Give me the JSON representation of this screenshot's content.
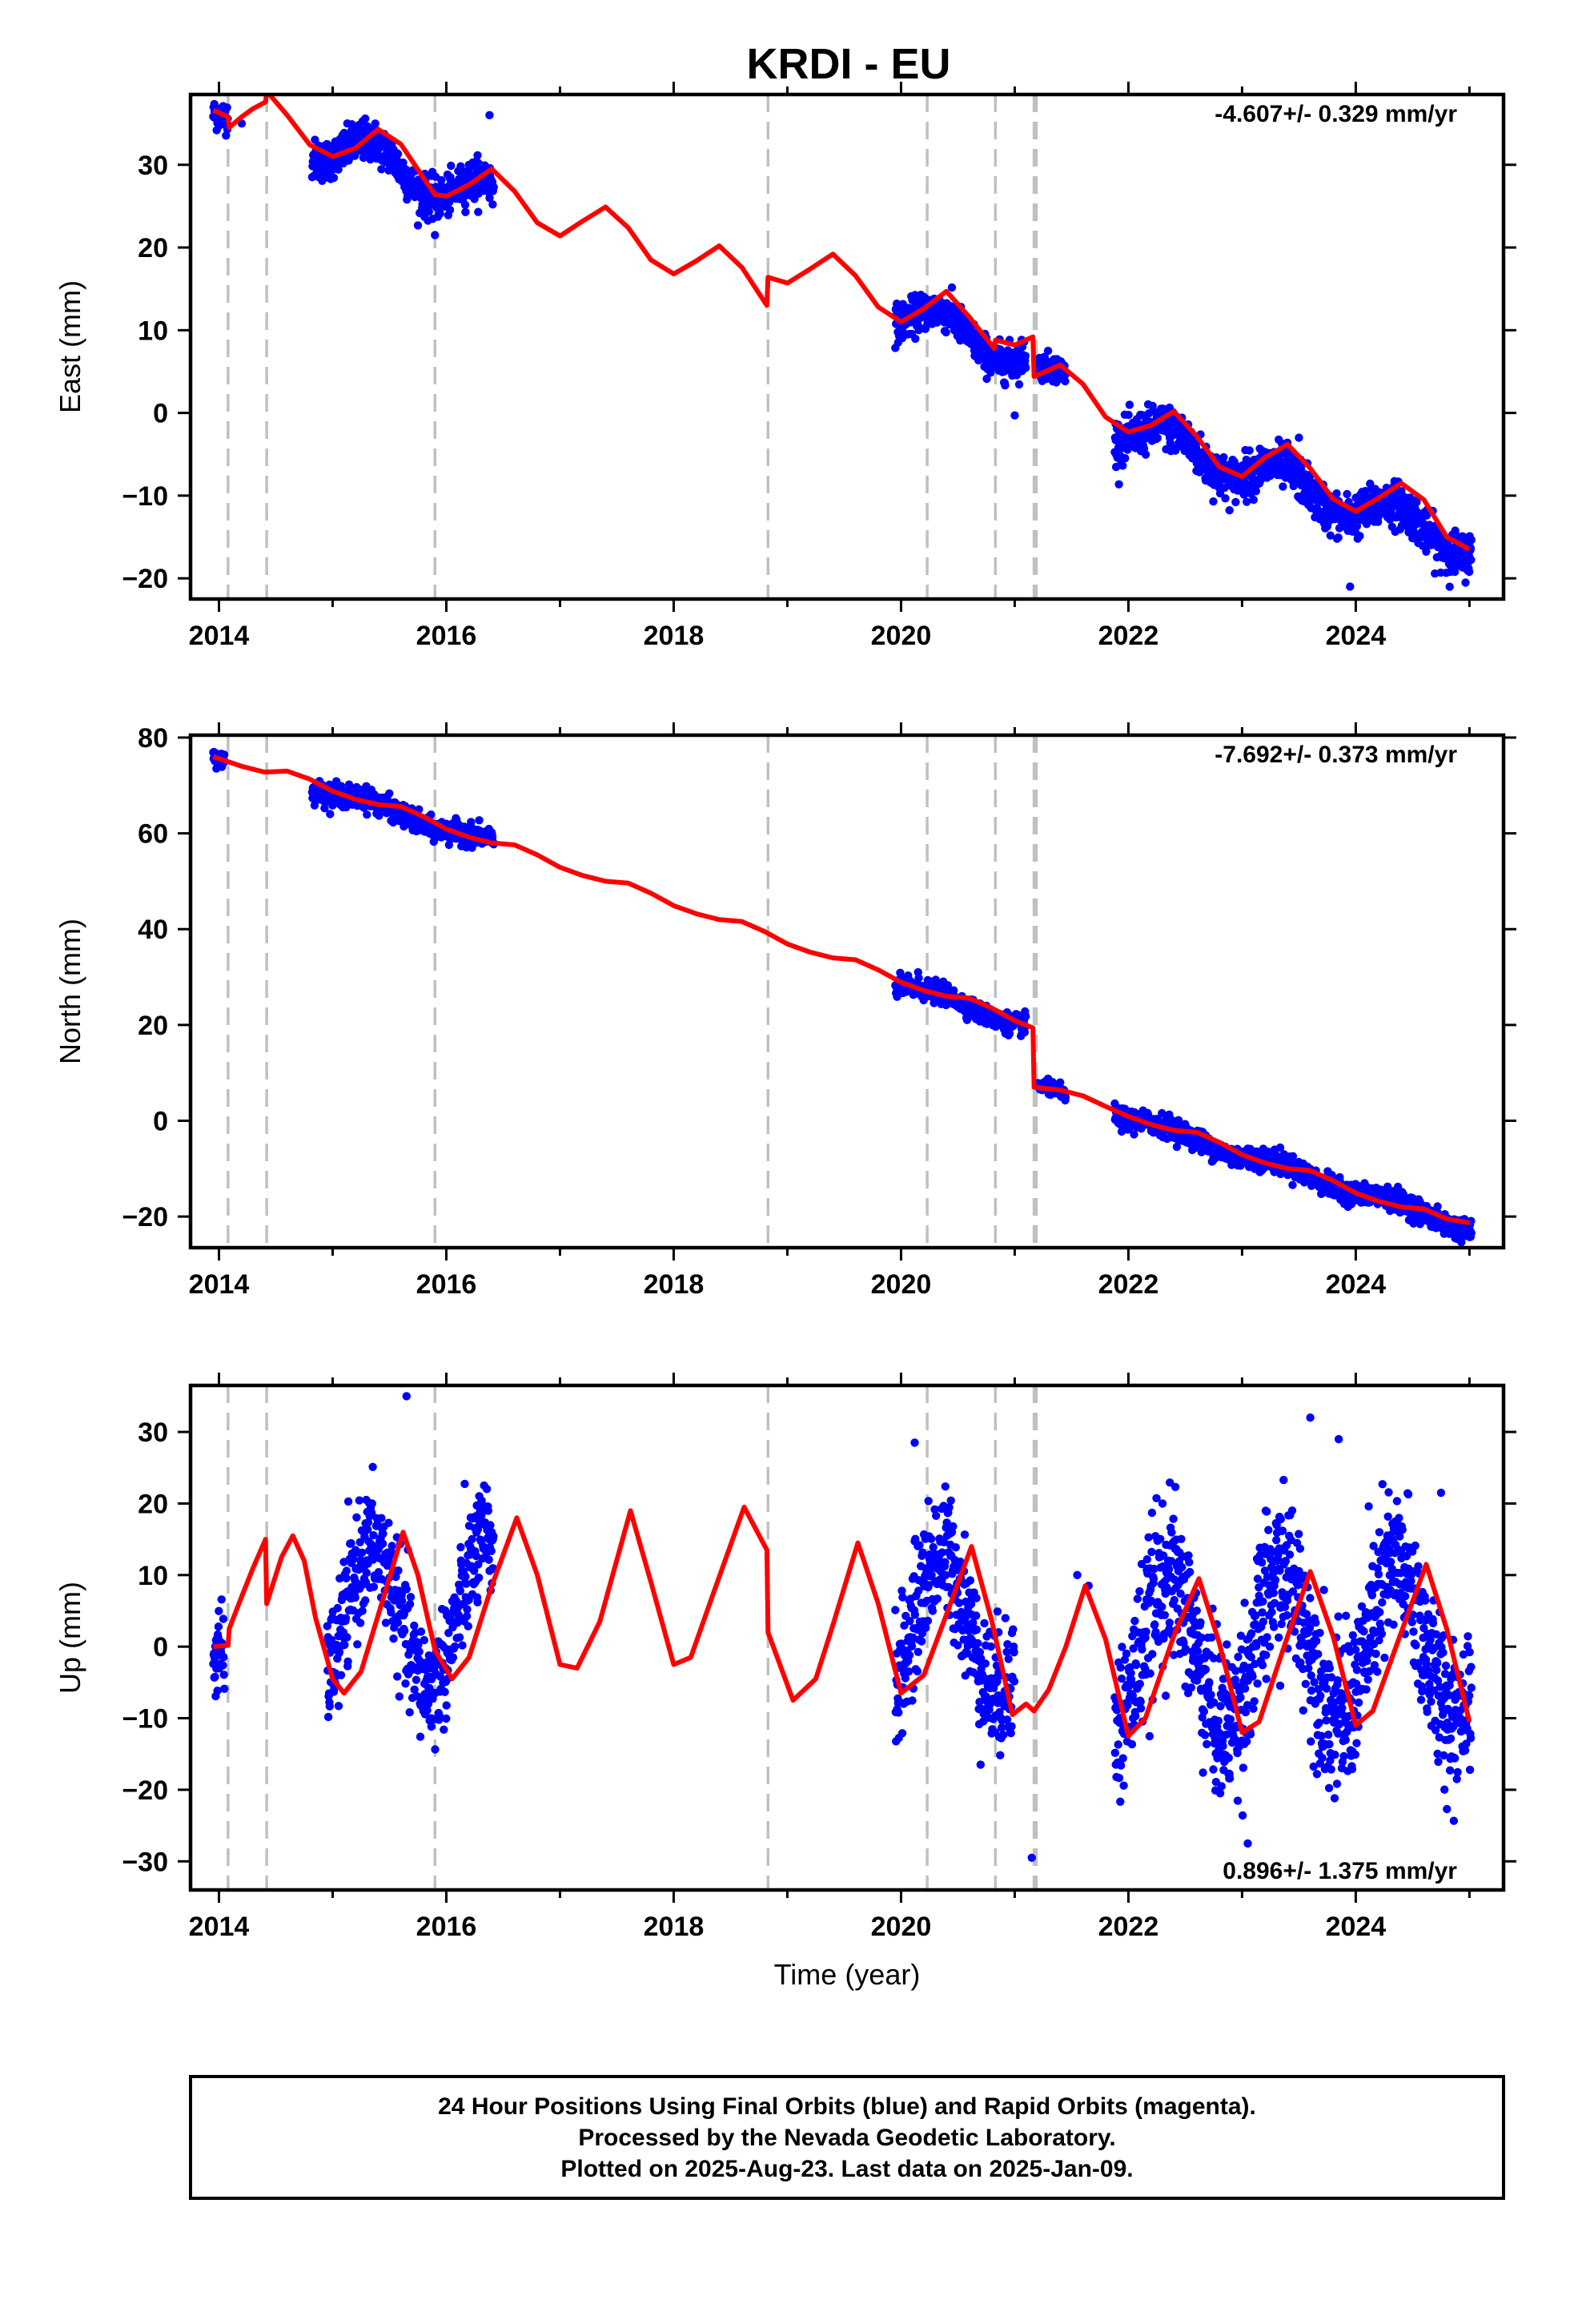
{
  "title": "KRDI - EU",
  "footer": {
    "lines": [
      "24 Hour Positions Using Final Orbits (blue) and Rapid Orbits (magenta).",
      "Processed by the Nevada Geodetic Laboratory.",
      "Plotted on 2025-Aug-23. Last data on 2025-Jan-09."
    ]
  },
  "colors": {
    "data": "#0000ff",
    "model": "#ff0000",
    "events": "#c0c0c0",
    "axis": "#000000"
  },
  "chart_data": [
    {
      "type": "scatter",
      "name": "east",
      "ylabel": "East (mm)",
      "xlabel": "",
      "rate": "-4.607+/- 0.329 mm/yr",
      "xlim": [
        2013.75,
        2025.3
      ],
      "ylim": [
        -22.5,
        38.5
      ],
      "xticks": [
        2014,
        2016,
        2018,
        2020,
        2022,
        2024
      ],
      "yticks": [
        -20,
        -10,
        0,
        10,
        20,
        30
      ],
      "event_lines": [
        2014.08,
        2014.42,
        2015.9,
        2018.83,
        2020.23,
        2020.83,
        2021.17,
        2021.19
      ],
      "model": {
        "x": [
          2013.95,
          2014.08,
          2014.09,
          2014.2,
          2014.3,
          2014.41,
          2014.42,
          2014.6,
          2014.8,
          2015.0,
          2015.2,
          2015.4,
          2015.6,
          2015.8,
          2015.9,
          2016.0,
          2016.2,
          2016.4,
          2016.6,
          2016.8,
          2017.0,
          2017.2,
          2017.4,
          2017.6,
          2017.8,
          2018.0,
          2018.2,
          2018.4,
          2018.6,
          2018.82,
          2018.83,
          2019.0,
          2019.2,
          2019.4,
          2019.6,
          2019.8,
          2020.0,
          2020.2,
          2020.4,
          2020.6,
          2020.82,
          2020.83,
          2021.0,
          2021.16,
          2021.17,
          2021.4,
          2021.6,
          2021.8,
          2022.0,
          2022.2,
          2022.4,
          2022.6,
          2022.8,
          2023.0,
          2023.2,
          2023.4,
          2023.6,
          2023.8,
          2024.0,
          2024.2,
          2024.4,
          2024.6,
          2024.8,
          2025.0
        ],
        "y": [
          36.6,
          35.8,
          34.5,
          35.8,
          36.8,
          37.6,
          38.9,
          36.0,
          32.4,
          31.0,
          32.0,
          34.3,
          32.5,
          28.4,
          26.4,
          26.2,
          27.6,
          29.5,
          26.8,
          23.0,
          21.4,
          23.2,
          24.9,
          22.4,
          18.5,
          16.8,
          18.4,
          20.2,
          17.6,
          13.0,
          16.4,
          15.7,
          17.4,
          19.2,
          16.6,
          12.8,
          11.0,
          12.6,
          14.7,
          11.6,
          7.8,
          8.8,
          8.2,
          9.2,
          4.4,
          5.8,
          3.5,
          -0.5,
          -2.3,
          -1.5,
          0.2,
          -2.8,
          -6.5,
          -7.7,
          -5.4,
          -3.8,
          -6.7,
          -10.4,
          -11.9,
          -10.3,
          -8.5,
          -10.5,
          -15.0,
          -16.5
        ]
      },
      "segments": [
        {
          "start": 2013.95,
          "end": 2014.08,
          "trend0": 36.6,
          "rate": -5.0,
          "amp": 0.6,
          "noise": 0.9
        },
        {
          "start": 2014.82,
          "end": 2016.42,
          "trend0": 33.0,
          "rate": -4.6,
          "amp": 2.3,
          "noise": 1.2
        },
        {
          "start": 2019.95,
          "end": 2021.1,
          "trend0": 12.3,
          "rate": -4.6,
          "amp": 1.9,
          "noise": 1.1
        },
        {
          "start": 2021.2,
          "end": 2021.45,
          "trend0": 4.9,
          "rate": -4.6,
          "amp": 1.2,
          "noise": 0.8
        },
        {
          "start": 2021.88,
          "end": 2025.02,
          "trend0": -1.5,
          "rate": -4.6,
          "amp": 1.9,
          "noise": 1.3
        }
      ],
      "outliers": [
        [
          2014.2,
          35.0
        ],
        [
          2016.38,
          36.0
        ],
        [
          2015.9,
          21.5
        ],
        [
          2021.4,
          5.6
        ],
        [
          2021.0,
          -0.3
        ],
        [
          2023.95,
          -21.0
        ],
        [
          2023.5,
          -3.0
        ]
      ]
    },
    {
      "type": "scatter",
      "name": "north",
      "ylabel": "North (mm)",
      "xlabel": "",
      "rate": "-7.692+/- 0.373 mm/yr",
      "xlim": [
        2013.75,
        2025.3
      ],
      "ylim": [
        -26.5,
        80.5
      ],
      "xticks": [
        2014,
        2016,
        2018,
        2020,
        2022,
        2024
      ],
      "yticks": [
        -20,
        0,
        20,
        40,
        60,
        80
      ],
      "event_lines": [
        2014.08,
        2014.42,
        2015.9,
        2018.83,
        2020.23,
        2020.83,
        2021.17,
        2021.19
      ],
      "model": {
        "x": [
          2013.95,
          2014.2,
          2014.4,
          2014.6,
          2014.8,
          2015.0,
          2015.2,
          2015.4,
          2015.6,
          2015.8,
          2016.0,
          2016.2,
          2016.4,
          2016.6,
          2016.8,
          2017.0,
          2017.2,
          2017.4,
          2017.6,
          2017.8,
          2018.0,
          2018.2,
          2018.4,
          2018.6,
          2018.8,
          2019.0,
          2019.2,
          2019.4,
          2019.6,
          2019.8,
          2020.0,
          2020.2,
          2020.4,
          2020.6,
          2020.8,
          2021.0,
          2021.16,
          2021.17,
          2021.4,
          2021.6,
          2021.8,
          2022.0,
          2022.2,
          2022.4,
          2022.6,
          2022.8,
          2023.0,
          2023.2,
          2023.4,
          2023.6,
          2023.8,
          2024.0,
          2024.2,
          2024.4,
          2024.6,
          2024.8,
          2025.0
        ],
        "y": [
          76.0,
          74.0,
          72.8,
          73.0,
          71.3,
          68.8,
          67.1,
          66.0,
          65.6,
          63.5,
          60.9,
          59.2,
          58.0,
          57.6,
          55.5,
          52.9,
          51.2,
          50.0,
          49.6,
          47.5,
          44.9,
          43.2,
          42.0,
          41.6,
          39.5,
          36.9,
          35.2,
          34.0,
          33.6,
          31.5,
          28.9,
          27.2,
          26.0,
          25.6,
          23.5,
          20.9,
          19.4,
          7.0,
          6.4,
          5.2,
          3.0,
          0.9,
          -0.8,
          -2.0,
          -2.4,
          -4.5,
          -7.1,
          -8.8,
          -10.0,
          -10.4,
          -12.5,
          -15.1,
          -16.8,
          -18.0,
          -18.4,
          -20.5,
          -21.3
        ]
      },
      "segments": [
        {
          "start": 2013.95,
          "end": 2014.05,
          "trend0": 76.3,
          "rate": -7.7,
          "amp": 0.8,
          "noise": 0.9
        },
        {
          "start": 2014.82,
          "end": 2016.42,
          "trend0": 70.0,
          "rate": -7.7,
          "amp": 0.9,
          "noise": 1.1
        },
        {
          "start": 2019.95,
          "end": 2021.1,
          "trend0": 28.8,
          "rate": -7.7,
          "amp": 0.9,
          "noise": 1.0
        },
        {
          "start": 2021.2,
          "end": 2021.45,
          "trend0": 7.0,
          "rate": -7.7,
          "amp": 0.6,
          "noise": 0.7
        },
        {
          "start": 2021.88,
          "end": 2025.02,
          "trend0": 1.6,
          "rate": -7.7,
          "amp": 0.9,
          "noise": 1.1
        }
      ],
      "outliers": [
        [
          2020.15,
          31.0
        ],
        [
          2021.4,
          8.0
        ],
        [
          2016.0,
          62.0
        ],
        [
          2022.7,
          -4.5
        ]
      ]
    },
    {
      "type": "scatter",
      "name": "up",
      "ylabel": "Up (mm)",
      "xlabel": "Time (year)",
      "rate": "0.896+/- 1.375 mm/yr",
      "xlim": [
        2013.75,
        2025.3
      ],
      "ylim": [
        -34,
        36.5
      ],
      "xticks": [
        2014,
        2016,
        2018,
        2020,
        2022,
        2024
      ],
      "yticks": [
        -30,
        -20,
        -10,
        0,
        10,
        20,
        30
      ],
      "event_lines": [
        2014.08,
        2014.42,
        2015.9,
        2018.83,
        2020.23,
        2020.83,
        2021.17,
        2021.19
      ],
      "model": {
        "x": [
          2013.95,
          2014.08,
          2014.09,
          2014.2,
          2014.3,
          2014.41,
          2014.42,
          2014.55,
          2014.65,
          2014.75,
          2014.85,
          2015.0,
          2015.1,
          2015.25,
          2015.45,
          2015.62,
          2015.75,
          2015.9,
          2016.05,
          2016.2,
          2016.4,
          2016.62,
          2016.8,
          2017.0,
          2017.15,
          2017.35,
          2017.62,
          2017.8,
          2018.0,
          2018.15,
          2018.35,
          2018.62,
          2018.82,
          2018.83,
          2019.05,
          2019.25,
          2019.4,
          2019.62,
          2019.8,
          2020.0,
          2020.2,
          2020.4,
          2020.62,
          2020.8,
          2020.98,
          2021.1,
          2021.17,
          2021.3,
          2021.45,
          2021.62,
          2021.8,
          2022.0,
          2022.15,
          2022.4,
          2022.62,
          2022.8,
          2023.0,
          2023.15,
          2023.38,
          2023.6,
          2023.8,
          2024.0,
          2024.15,
          2024.4,
          2024.62,
          2024.8,
          2025.0
        ],
        "y": [
          0.0,
          0.2,
          2.5,
          7.0,
          11.0,
          15.0,
          6.0,
          12.5,
          15.5,
          12.0,
          4.0,
          -4.5,
          -6.5,
          -3.5,
          7.0,
          16.0,
          10.0,
          -0.5,
          -4.5,
          -1.5,
          8.5,
          18.0,
          10.0,
          -2.5,
          -3.0,
          3.5,
          19.0,
          9.0,
          -2.5,
          -1.5,
          7.5,
          19.5,
          13.5,
          2.0,
          -7.5,
          -4.5,
          3.0,
          14.5,
          6.0,
          -6.5,
          -4.0,
          4.5,
          14.0,
          3.5,
          -9.5,
          -8.0,
          -9.0,
          -6.0,
          0.0,
          8.5,
          1.0,
          -12.5,
          -10.0,
          1.5,
          9.5,
          0.5,
          -12.0,
          -10.5,
          0.5,
          10.5,
          1.5,
          -11.0,
          -9.0,
          2.0,
          11.5,
          2.5,
          -10.5
        ]
      },
      "segments": [
        {
          "start": 2013.95,
          "end": 2014.05,
          "trend0": 0.0,
          "rate": 0.9,
          "amp": 2.0,
          "noise": 3.0
        },
        {
          "start": 2014.95,
          "end": 2016.42,
          "trend0": 3.5,
          "rate": 0.9,
          "amp": 10.0,
          "noise": 4.0
        },
        {
          "start": 2019.95,
          "end": 2021.0,
          "trend0": 2.5,
          "rate": 0.9,
          "amp": 10.0,
          "noise": 4.5
        },
        {
          "start": 2021.88,
          "end": 2025.02,
          "trend0": -1.5,
          "rate": 0.9,
          "amp": 10.5,
          "noise": 5.5
        }
      ],
      "outliers": [
        [
          2015.65,
          35.0
        ],
        [
          2020.12,
          28.5
        ],
        [
          2023.6,
          32.0
        ],
        [
          2023.85,
          29.0
        ],
        [
          2024.75,
          21.5
        ],
        [
          2021.15,
          -29.5
        ],
        [
          2023.05,
          -27.5
        ],
        [
          2021.55,
          10.0
        ],
        [
          2022.3,
          20.0
        ],
        [
          2021.65,
          8.5
        ]
      ]
    }
  ]
}
